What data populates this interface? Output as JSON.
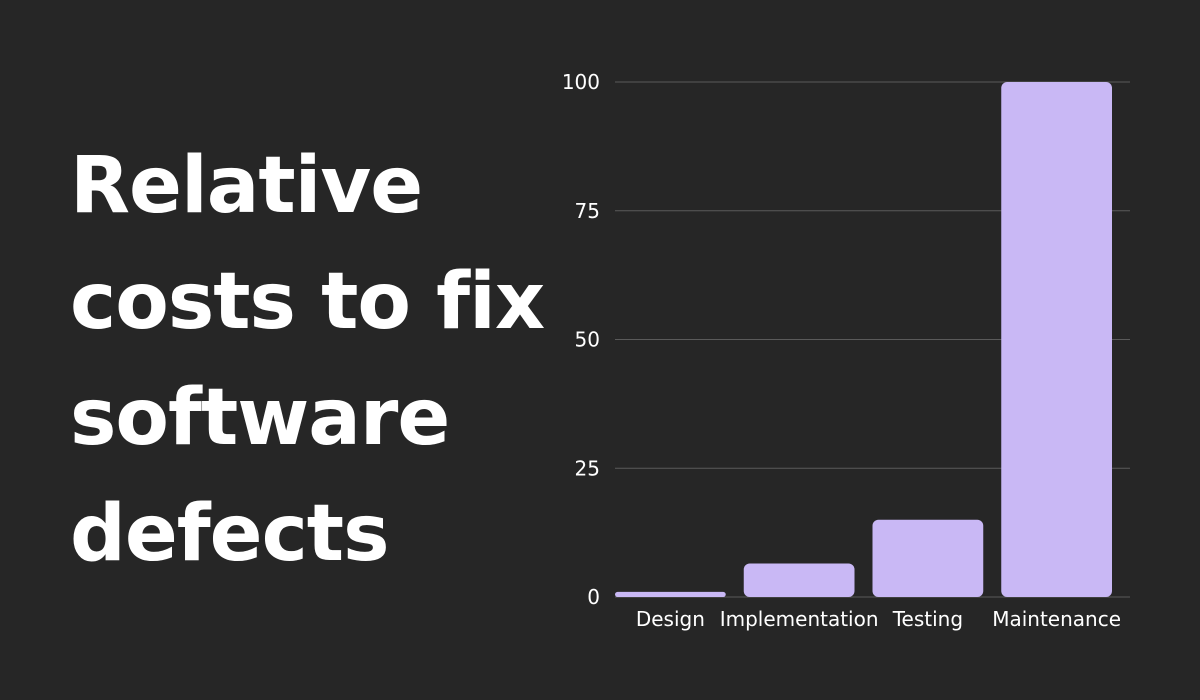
{
  "title_lines": [
    "Relative",
    "costs to fix",
    "software",
    "defects"
  ],
  "colors": {
    "background": "#262626",
    "bar": "#c9b8f5",
    "text": "#ffffff",
    "grid": "#5a5a5a"
  },
  "chart_data": {
    "type": "bar",
    "title": "Relative costs to fix software defects",
    "categories": [
      "Design",
      "Implementation",
      "Testing",
      "Maintenance"
    ],
    "values": [
      1,
      6.5,
      15,
      100
    ],
    "xlabel": "",
    "ylabel": "",
    "ylim": [
      0,
      100
    ],
    "yticks": [
      0,
      25,
      50,
      75,
      100
    ],
    "grid": true,
    "legend": "none"
  }
}
